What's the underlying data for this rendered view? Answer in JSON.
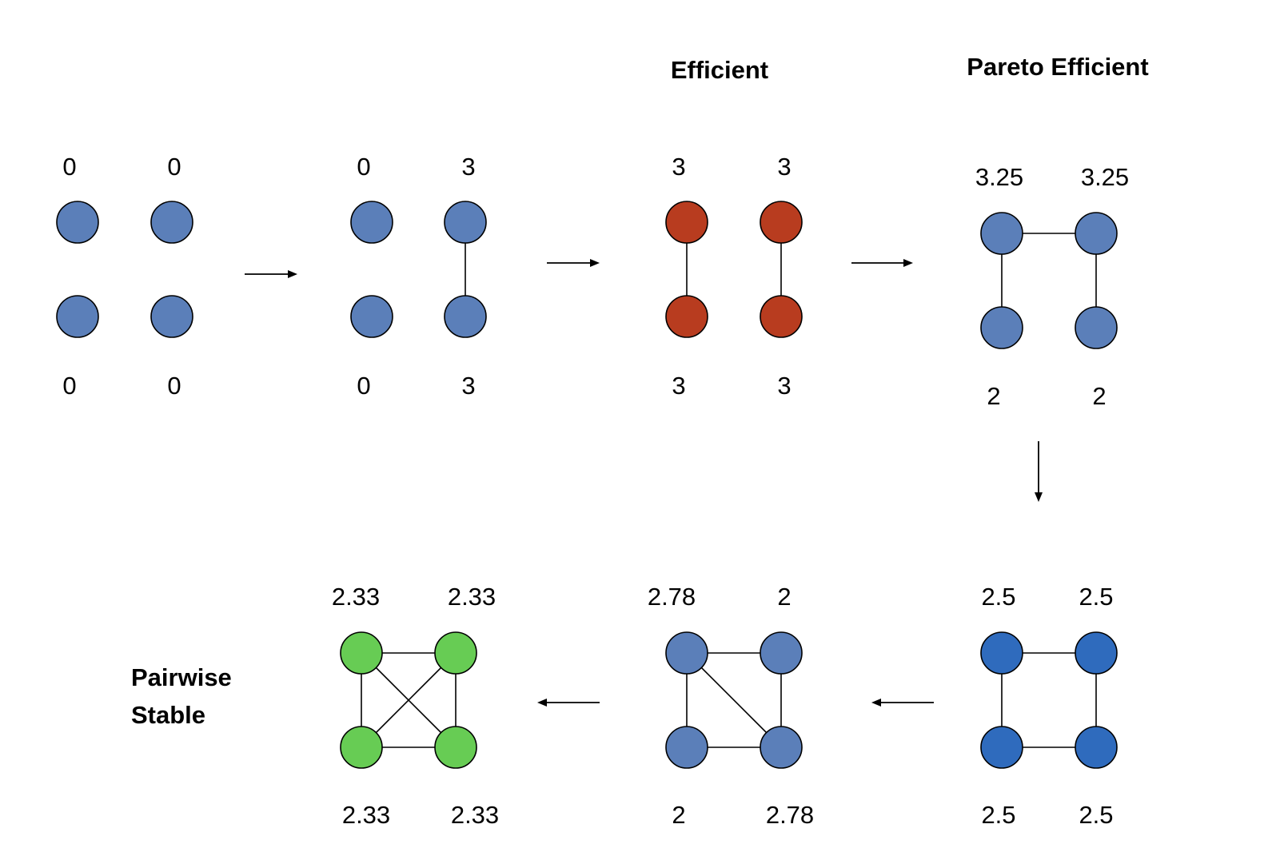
{
  "titles": {
    "efficient": "Efficient",
    "pareto_efficient": "Pareto Efficient",
    "pairwise_line1": "Pairwise",
    "pairwise_line2": "Stable"
  },
  "colors": {
    "node_blue": "#5b7fb9",
    "node_red": "#b83c1f",
    "node_deep_blue": "#2f6bbd",
    "node_green": "#67cc54",
    "stroke": "#000000"
  },
  "networks": [
    {
      "id": "empty",
      "node_color": "node_blue",
      "payoffs": [
        "0",
        "0",
        "0",
        "0"
      ],
      "edges": []
    },
    {
      "id": "one-link",
      "node_color": "node_blue",
      "payoffs": [
        "0",
        "3",
        "0",
        "3"
      ],
      "edges": [
        [
          1,
          3
        ]
      ]
    },
    {
      "id": "efficient",
      "node_color": "node_red",
      "payoffs": [
        "3",
        "3",
        "3",
        "3"
      ],
      "edges": [
        [
          0,
          2
        ],
        [
          1,
          3
        ]
      ]
    },
    {
      "id": "pareto-efficient",
      "node_color": "node_blue",
      "payoffs": [
        "3.25",
        "3.25",
        "2",
        "2"
      ],
      "edges": [
        [
          0,
          1
        ],
        [
          0,
          2
        ],
        [
          1,
          3
        ]
      ]
    },
    {
      "id": "cycle",
      "node_color": "node_deep_blue",
      "payoffs": [
        "2.5",
        "2.5",
        "2.5",
        "2.5"
      ],
      "edges": [
        [
          0,
          1
        ],
        [
          0,
          2
        ],
        [
          1,
          3
        ],
        [
          2,
          3
        ]
      ]
    },
    {
      "id": "cycle-plus-diagonal",
      "node_color": "node_blue",
      "payoffs": [
        "2.78",
        "2",
        "2",
        "2.78"
      ],
      "edges": [
        [
          0,
          1
        ],
        [
          0,
          2
        ],
        [
          1,
          3
        ],
        [
          2,
          3
        ],
        [
          0,
          3
        ]
      ]
    },
    {
      "id": "complete",
      "node_color": "node_green",
      "payoffs": [
        "2.33",
        "2.33",
        "2.33",
        "2.33"
      ],
      "edges": [
        [
          0,
          1
        ],
        [
          0,
          2
        ],
        [
          1,
          3
        ],
        [
          2,
          3
        ],
        [
          0,
          3
        ],
        [
          1,
          2
        ]
      ]
    }
  ],
  "arrows": [
    "right",
    "right",
    "right",
    "down",
    "left",
    "left"
  ]
}
